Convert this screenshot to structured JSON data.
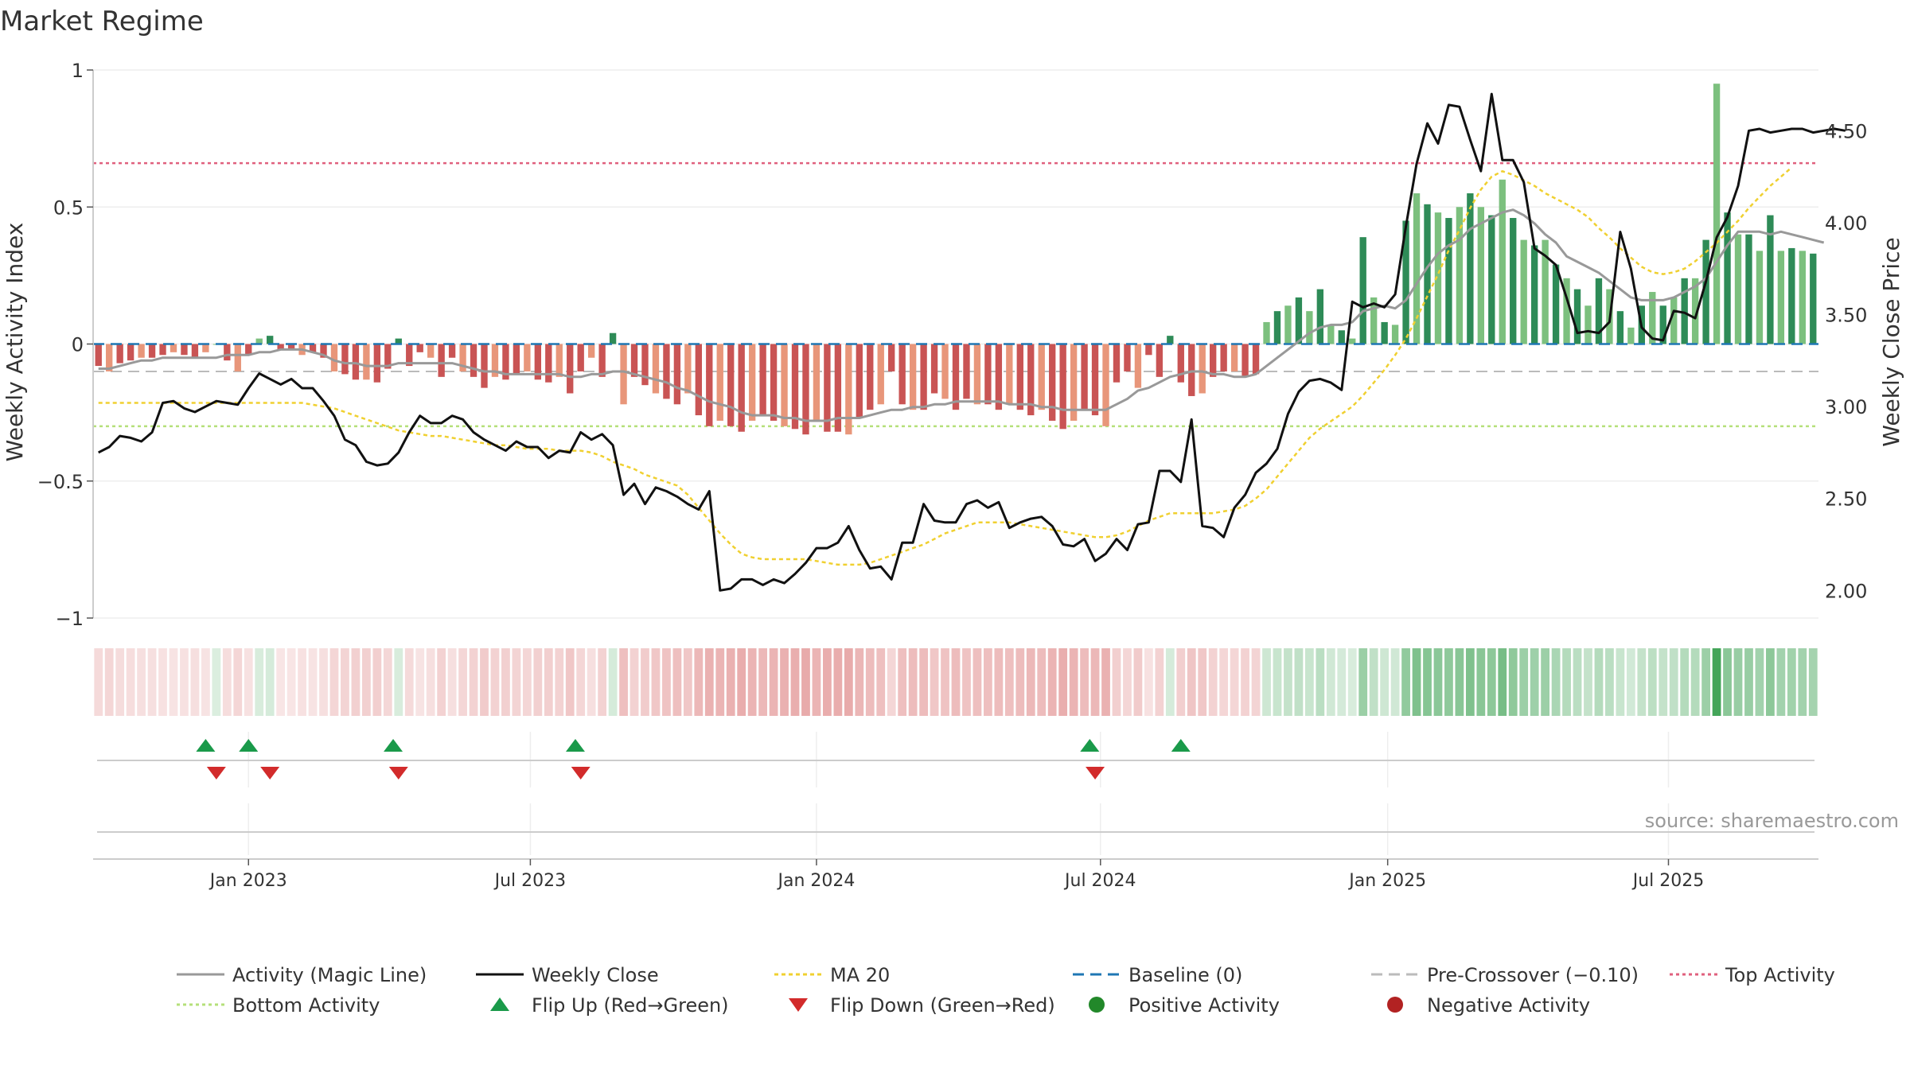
{
  "colors": {
    "bar_pos_strong": "#2e8b57",
    "bar_pos_light": "#7cc07e",
    "bar_neg_strong": "#c95454",
    "bar_neg_light": "#e8967a",
    "close": "#111111",
    "magic": "#999999",
    "ma20": "#f0d030",
    "baseline": "#1f77b4",
    "precross": "#bbbbbb",
    "top": "#e0607e",
    "bottom": "#b5e07a",
    "flip_up": "#1a9a4a",
    "flip_down": "#d22b2b",
    "pos_dot": "#22882a",
    "neg_dot": "#b22222"
  },
  "chart_data": {
    "type": "bar+line",
    "title": "Market Regime",
    "ylabel": "Weekly Activity Index",
    "y2label": "Weekly Close Price",
    "ylim": [
      -1,
      1
    ],
    "y2lim": [
      1.85,
      4.83
    ],
    "yticks": [
      {
        "v": 1,
        "label": "1"
      },
      {
        "v": 0.5,
        "label": "0.5"
      },
      {
        "v": 0,
        "label": "0"
      },
      {
        "v": -0.5,
        "label": "−0.5"
      },
      {
        "v": -1,
        "label": "−1"
      }
    ],
    "y2ticks": [
      {
        "v": 4.5,
        "label": "4.50"
      },
      {
        "v": 4.0,
        "label": "4.00"
      },
      {
        "v": 3.5,
        "label": "3.50"
      },
      {
        "v": 3.0,
        "label": "3.00"
      },
      {
        "v": 2.5,
        "label": "2.50"
      },
      {
        "v": 2.0,
        "label": "2.00"
      }
    ],
    "xrange": [
      0,
      159
    ],
    "xticks": [
      {
        "week": 14.5,
        "label": "Jan 2023"
      },
      {
        "week": 40.8,
        "label": "Jul 2023"
      },
      {
        "week": 67.5,
        "label": "Jan 2024"
      },
      {
        "week": 94,
        "label": "Jul 2024"
      },
      {
        "week": 120.8,
        "label": "Jan 2025"
      },
      {
        "week": 147,
        "label": "Jul 2025"
      }
    ],
    "activity": [
      -0.08,
      -0.1,
      -0.07,
      -0.06,
      -0.05,
      -0.05,
      -0.04,
      -0.03,
      -0.04,
      -0.05,
      -0.03,
      0.0,
      -0.06,
      -0.1,
      -0.04,
      0.02,
      0.03,
      -0.02,
      -0.02,
      -0.04,
      -0.03,
      -0.05,
      -0.1,
      -0.11,
      -0.13,
      -0.13,
      -0.14,
      -0.09,
      0.02,
      -0.08,
      -0.03,
      -0.05,
      -0.12,
      -0.05,
      -0.1,
      -0.12,
      -0.16,
      -0.12,
      -0.13,
      -0.11,
      -0.1,
      -0.13,
      -0.14,
      -0.12,
      -0.18,
      -0.1,
      -0.05,
      -0.12,
      0.04,
      -0.22,
      -0.12,
      -0.15,
      -0.18,
      -0.2,
      -0.22,
      -0.18,
      -0.26,
      -0.3,
      -0.28,
      -0.3,
      -0.32,
      -0.28,
      -0.26,
      -0.28,
      -0.3,
      -0.31,
      -0.33,
      -0.28,
      -0.32,
      -0.32,
      -0.33,
      -0.27,
      -0.24,
      -0.22,
      -0.1,
      -0.22,
      -0.24,
      -0.24,
      -0.18,
      -0.2,
      -0.24,
      -0.2,
      -0.22,
      -0.22,
      -0.24,
      -0.22,
      -0.24,
      -0.26,
      -0.24,
      -0.28,
      -0.31,
      -0.28,
      -0.24,
      -0.26,
      -0.3,
      -0.14,
      -0.1,
      -0.16,
      -0.04,
      -0.12,
      0.03,
      -0.14,
      -0.19,
      -0.18,
      -0.12,
      -0.1,
      -0.1,
      -0.12,
      -0.11,
      0.08,
      0.12,
      0.14,
      0.17,
      0.12,
      0.2,
      0.07,
      0.05,
      0.02,
      0.39,
      0.17,
      0.08,
      0.07,
      0.45,
      0.55,
      0.51,
      0.48,
      0.46,
      0.5,
      0.55,
      0.5,
      0.47,
      0.6,
      0.46,
      0.38,
      0.36,
      0.38,
      0.29,
      0.24,
      0.2,
      0.14,
      0.24,
      0.2,
      0.12,
      0.06,
      0.14,
      0.19,
      0.14,
      0.17,
      0.24,
      0.24,
      0.38,
      0.95,
      0.48,
      0.4,
      0.4,
      0.34,
      0.47,
      0.34,
      0.35,
      0.34,
      0.33
    ],
    "weekly_close": [
      2.75,
      2.78,
      2.84,
      2.83,
      2.81,
      2.86,
      3.02,
      3.03,
      2.99,
      2.97,
      3.0,
      3.03,
      3.02,
      3.01,
      3.1,
      3.18,
      3.15,
      3.12,
      3.15,
      3.1,
      3.1,
      3.03,
      2.95,
      2.82,
      2.79,
      2.7,
      2.68,
      2.69,
      2.75,
      2.86,
      2.95,
      2.91,
      2.91,
      2.95,
      2.93,
      2.86,
      2.82,
      2.79,
      2.76,
      2.81,
      2.78,
      2.78,
      2.72,
      2.76,
      2.75,
      2.86,
      2.82,
      2.85,
      2.79,
      2.52,
      2.58,
      2.47,
      2.56,
      2.54,
      2.51,
      2.47,
      2.44,
      2.54,
      2.0,
      2.01,
      2.06,
      2.06,
      2.03,
      2.06,
      2.04,
      2.09,
      2.15,
      2.23,
      2.23,
      2.26,
      2.35,
      2.22,
      2.12,
      2.13,
      2.06,
      2.26,
      2.26,
      2.47,
      2.38,
      2.37,
      2.37,
      2.47,
      2.49,
      2.45,
      2.48,
      2.34,
      2.37,
      2.39,
      2.4,
      2.35,
      2.25,
      2.24,
      2.28,
      2.16,
      2.2,
      2.28,
      2.22,
      2.36,
      2.37,
      2.65,
      2.65,
      2.59,
      2.93,
      2.35,
      2.34,
      2.29,
      2.45,
      2.52,
      2.64,
      2.69,
      2.77,
      2.96,
      3.08,
      3.14,
      3.15,
      3.13,
      3.09,
      3.57,
      3.54,
      3.56,
      3.54,
      3.61,
      3.98,
      4.32,
      4.54,
      4.43,
      4.64,
      4.63,
      4.45,
      4.28,
      4.7,
      4.34,
      4.34,
      4.22,
      3.86,
      3.82,
      3.77,
      3.59,
      3.4,
      3.41,
      3.4,
      3.46,
      3.95,
      3.75,
      3.43,
      3.37,
      3.36,
      3.52,
      3.51,
      3.48,
      3.68,
      3.92,
      4.03,
      4.2,
      4.5,
      4.51,
      4.49,
      4.5,
      4.51,
      4.51,
      4.49,
      4.5,
      4.51,
      4.5
    ],
    "magic_line": [
      -0.09,
      -0.09,
      -0.08,
      -0.07,
      -0.06,
      -0.06,
      -0.05,
      -0.05,
      -0.05,
      -0.05,
      -0.05,
      -0.05,
      -0.04,
      -0.04,
      -0.04,
      -0.03,
      -0.03,
      -0.02,
      -0.02,
      -0.02,
      -0.03,
      -0.04,
      -0.06,
      -0.07,
      -0.07,
      -0.08,
      -0.08,
      -0.08,
      -0.07,
      -0.07,
      -0.07,
      -0.07,
      -0.07,
      -0.07,
      -0.08,
      -0.09,
      -0.1,
      -0.1,
      -0.11,
      -0.11,
      -0.11,
      -0.11,
      -0.11,
      -0.11,
      -0.12,
      -0.12,
      -0.11,
      -0.11,
      -0.1,
      -0.1,
      -0.11,
      -0.12,
      -0.13,
      -0.14,
      -0.16,
      -0.17,
      -0.19,
      -0.21,
      -0.22,
      -0.23,
      -0.25,
      -0.26,
      -0.26,
      -0.26,
      -0.27,
      -0.27,
      -0.28,
      -0.28,
      -0.28,
      -0.27,
      -0.27,
      -0.27,
      -0.26,
      -0.25,
      -0.24,
      -0.24,
      -0.23,
      -0.23,
      -0.22,
      -0.22,
      -0.21,
      -0.21,
      -0.21,
      -0.21,
      -0.21,
      -0.22,
      -0.22,
      -0.22,
      -0.23,
      -0.23,
      -0.24,
      -0.24,
      -0.24,
      -0.24,
      -0.24,
      -0.22,
      -0.2,
      -0.17,
      -0.16,
      -0.14,
      -0.12,
      -0.11,
      -0.1,
      -0.1,
      -0.11,
      -0.11,
      -0.12,
      -0.12,
      -0.11,
      -0.08,
      -0.05,
      -0.02,
      0.01,
      0.04,
      0.06,
      0.07,
      0.07,
      0.08,
      0.12,
      0.13,
      0.14,
      0.13,
      0.16,
      0.22,
      0.28,
      0.33,
      0.36,
      0.38,
      0.42,
      0.44,
      0.46,
      0.48,
      0.49,
      0.47,
      0.44,
      0.4,
      0.37,
      0.32,
      0.3,
      0.28,
      0.26,
      0.23,
      0.2,
      0.17,
      0.16,
      0.16,
      0.16,
      0.17,
      0.19,
      0.21,
      0.24,
      0.3,
      0.36,
      0.41,
      0.41,
      0.41,
      0.4,
      0.41,
      0.4,
      0.39,
      0.38,
      0.37
    ],
    "ma20": [
      3.02,
      3.02,
      3.02,
      3.02,
      3.02,
      3.02,
      3.02,
      3.02,
      3.02,
      3.02,
      3.02,
      3.02,
      3.02,
      3.02,
      3.02,
      3.02,
      3.02,
      3.02,
      3.02,
      3.02,
      3.01,
      3.0,
      2.99,
      2.97,
      2.95,
      2.93,
      2.91,
      2.89,
      2.87,
      2.86,
      2.85,
      2.84,
      2.84,
      2.83,
      2.82,
      2.81,
      2.8,
      2.79,
      2.79,
      2.78,
      2.77,
      2.77,
      2.77,
      2.76,
      2.76,
      2.76,
      2.75,
      2.73,
      2.7,
      2.68,
      2.66,
      2.63,
      2.61,
      2.59,
      2.57,
      2.52,
      2.45,
      2.38,
      2.31,
      2.25,
      2.2,
      2.18,
      2.17,
      2.17,
      2.17,
      2.17,
      2.17,
      2.16,
      2.15,
      2.14,
      2.14,
      2.14,
      2.15,
      2.17,
      2.19,
      2.21,
      2.23,
      2.25,
      2.28,
      2.31,
      2.33,
      2.35,
      2.37,
      2.37,
      2.37,
      2.37,
      2.36,
      2.35,
      2.34,
      2.33,
      2.32,
      2.31,
      2.3,
      2.29,
      2.29,
      2.3,
      2.32,
      2.35,
      2.38,
      2.4,
      2.42,
      2.42,
      2.42,
      2.42,
      2.42,
      2.43,
      2.44,
      2.46,
      2.5,
      2.55,
      2.62,
      2.69,
      2.76,
      2.83,
      2.88,
      2.92,
      2.96,
      3.0,
      3.06,
      3.13,
      3.2,
      3.28,
      3.37,
      3.48,
      3.6,
      3.72,
      3.85,
      3.96,
      4.08,
      4.18,
      4.25,
      4.28,
      4.26,
      4.23,
      4.2,
      4.16,
      4.13,
      4.1,
      4.07,
      4.03,
      3.97,
      3.92,
      3.86,
      3.81,
      3.76,
      3.73,
      3.72,
      3.73,
      3.75,
      3.79,
      3.84,
      3.89,
      3.95,
      4.01,
      4.08,
      4.14,
      4.2,
      4.25,
      4.3
    ],
    "top_activity": 0.66,
    "bottom_activity": -0.3,
    "baseline": 0,
    "pre_crossover": -0.1,
    "flip_up_weeks": [
      10.5,
      14.5,
      28,
      45,
      93,
      101.5
    ],
    "flip_down_weeks": [
      11.5,
      16.5,
      28.5,
      45.5,
      93.5
    ],
    "legend": [
      {
        "label": "Activity (Magic Line)",
        "kind": "line-magic"
      },
      {
        "label": "Weekly Close",
        "kind": "line-close"
      },
      {
        "label": "MA 20",
        "kind": "line-ma"
      },
      {
        "label": "Baseline (0)",
        "kind": "line-baseline"
      },
      {
        "label": "Pre-Crossover (−0.10)",
        "kind": "line-precross"
      },
      {
        "label": "Top Activity",
        "kind": "line-top"
      },
      {
        "label": "Bottom Activity",
        "kind": "line-bottom"
      },
      {
        "label": "Flip Up (Red→Green)",
        "kind": "tri-up"
      },
      {
        "label": "Flip Down (Green→Red)",
        "kind": "tri-down"
      },
      {
        "label": "Positive Activity",
        "kind": "dot-pos"
      },
      {
        "label": "Negative Activity",
        "kind": "dot-neg"
      }
    ],
    "source": "source: sharemaestro.com"
  }
}
